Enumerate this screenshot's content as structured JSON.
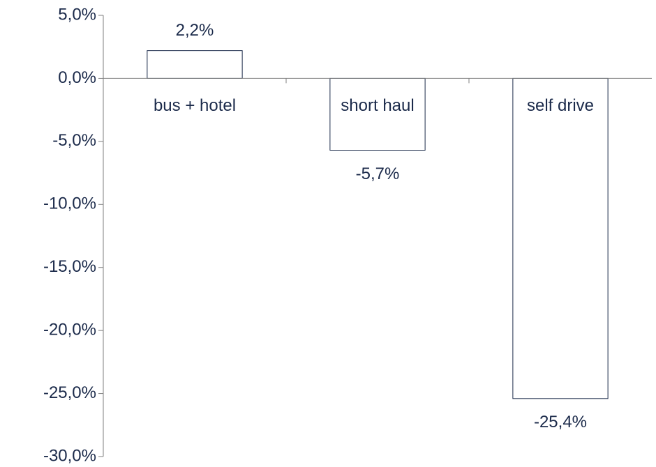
{
  "chart_data": {
    "type": "bar",
    "categories": [
      "bus + hotel",
      "short haul",
      "self drive"
    ],
    "values": [
      2.2,
      -5.7,
      -25.4
    ],
    "value_labels": [
      "2,2%",
      "-5,7%",
      "-25,4%"
    ],
    "color": "#ffffff",
    "ylim": [
      -30,
      5
    ],
    "yticks": [
      {
        "value": 5,
        "label": "5,0%"
      },
      {
        "value": 0,
        "label": "0,0%"
      },
      {
        "value": -5,
        "label": "-5,0%"
      },
      {
        "value": -10,
        "label": "-10,0%"
      },
      {
        "value": -15,
        "label": "-15,0%"
      },
      {
        "value": -20,
        "label": "-20,0%"
      },
      {
        "value": -25,
        "label": "-25,0%"
      },
      {
        "value": -30,
        "label": "-30,0%"
      }
    ],
    "grid": false
  }
}
